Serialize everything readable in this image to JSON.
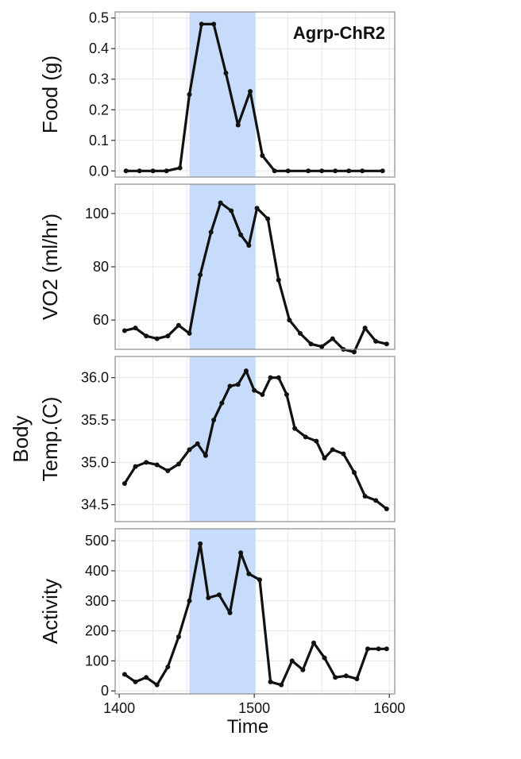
{
  "chart_data": {
    "type": "line",
    "xlabel": "Time",
    "x_ticks": [
      1400,
      1500,
      1600
    ],
    "x_range": [
      1397,
      1604
    ],
    "stim_band": [
      1452,
      1501
    ],
    "annotation": "Agrp-ChR2",
    "colors": {
      "line": "#111111",
      "band": "#c6dcfa",
      "grid": "#e6e6e6",
      "frame": "#8c8c8c"
    },
    "grid": true,
    "panels": [
      {
        "id": "food",
        "ylabel": [
          "Food (g)"
        ],
        "ylim": [
          -0.02,
          0.52
        ],
        "y_ticks": [
          0.0,
          0.1,
          0.2,
          0.3,
          0.4,
          0.5
        ],
        "y_tick_labels": [
          "0.0",
          "0.1",
          "0.2",
          "0.3",
          "0.4",
          "0.5"
        ],
        "x": [
          1410,
          1420,
          1430,
          1440,
          1450,
          1460,
          1470,
          1480,
          1490,
          1500,
          1510,
          1520,
          1530,
          1540,
          1550,
          1560,
          1570,
          1580,
          1590,
          1600
        ],
        "y": [
          0.0,
          0.0,
          0.0,
          0.0,
          0.01,
          0.25,
          0.48,
          0.48,
          0.32,
          0.15,
          0.26,
          0.05,
          0.0,
          0.0,
          0.0,
          0.0,
          0.0,
          0.0,
          0.0,
          0.0
        ],
        "x_points_shifted": [
          1405,
          1415,
          1425,
          1435,
          1445,
          1452,
          1461,
          1470,
          1479,
          1488,
          1497,
          1506,
          1515,
          1525,
          1540,
          1550,
          1560,
          1570,
          1580,
          1595
        ]
      },
      {
        "id": "vo2",
        "ylabel": [
          "VO2 (ml/hr)"
        ],
        "ylim": [
          49,
          111
        ],
        "y_ticks": [
          60,
          80,
          100
        ],
        "y_tick_labels": [
          "60",
          "80",
          "100"
        ],
        "x": [
          1404,
          1412,
          1420,
          1428,
          1436,
          1444,
          1452,
          1460,
          1468,
          1475,
          1483,
          1490,
          1496,
          1502,
          1510,
          1518,
          1526,
          1534,
          1542,
          1550,
          1558,
          1566,
          1574,
          1582,
          1590,
          1598
        ],
        "y": [
          56,
          57,
          54,
          53,
          54,
          58,
          55,
          77,
          93,
          104,
          101,
          92,
          88,
          102,
          98,
          75,
          60,
          55,
          51,
          50,
          53,
          49,
          48,
          57,
          52,
          51
        ]
      },
      {
        "id": "temp",
        "ylabel": [
          "Body",
          "Temp.(C)"
        ],
        "ylim": [
          34.3,
          36.25
        ],
        "y_ticks": [
          34.5,
          35.0,
          35.5,
          36.0
        ],
        "y_tick_labels": [
          "34.5",
          "35.0",
          "35.5",
          "36.0"
        ],
        "x": [
          1404,
          1412,
          1420,
          1428,
          1436,
          1444,
          1452,
          1458,
          1464,
          1470,
          1476,
          1482,
          1488,
          1494,
          1500,
          1506,
          1512,
          1518,
          1524,
          1530,
          1538,
          1546,
          1552,
          1558,
          1566,
          1574,
          1582,
          1590,
          1598
        ],
        "y": [
          34.75,
          34.95,
          35.0,
          34.97,
          34.9,
          34.98,
          35.15,
          35.22,
          35.08,
          35.5,
          35.7,
          35.9,
          35.92,
          36.08,
          35.85,
          35.8,
          36.0,
          36.0,
          35.8,
          35.4,
          35.3,
          35.25,
          35.05,
          35.15,
          35.1,
          34.88,
          34.6,
          34.55,
          34.45
        ]
      },
      {
        "id": "activity",
        "ylabel": [
          "Activity"
        ],
        "ylim": [
          -10,
          540
        ],
        "y_ticks": [
          0,
          100,
          200,
          300,
          400,
          500
        ],
        "y_tick_labels": [
          "0",
          "100",
          "200",
          "300",
          "400",
          "500"
        ],
        "x": [
          1404,
          1412,
          1420,
          1428,
          1436,
          1444,
          1452,
          1460,
          1466,
          1474,
          1482,
          1490,
          1496,
          1504,
          1512,
          1520,
          1528,
          1536,
          1544,
          1552,
          1560,
          1568,
          1576,
          1584,
          1592,
          1598
        ],
        "y": [
          55,
          30,
          45,
          20,
          80,
          180,
          300,
          490,
          310,
          320,
          260,
          460,
          390,
          370,
          30,
          20,
          100,
          70,
          160,
          110,
          45,
          50,
          40,
          140,
          140,
          140
        ]
      }
    ]
  }
}
